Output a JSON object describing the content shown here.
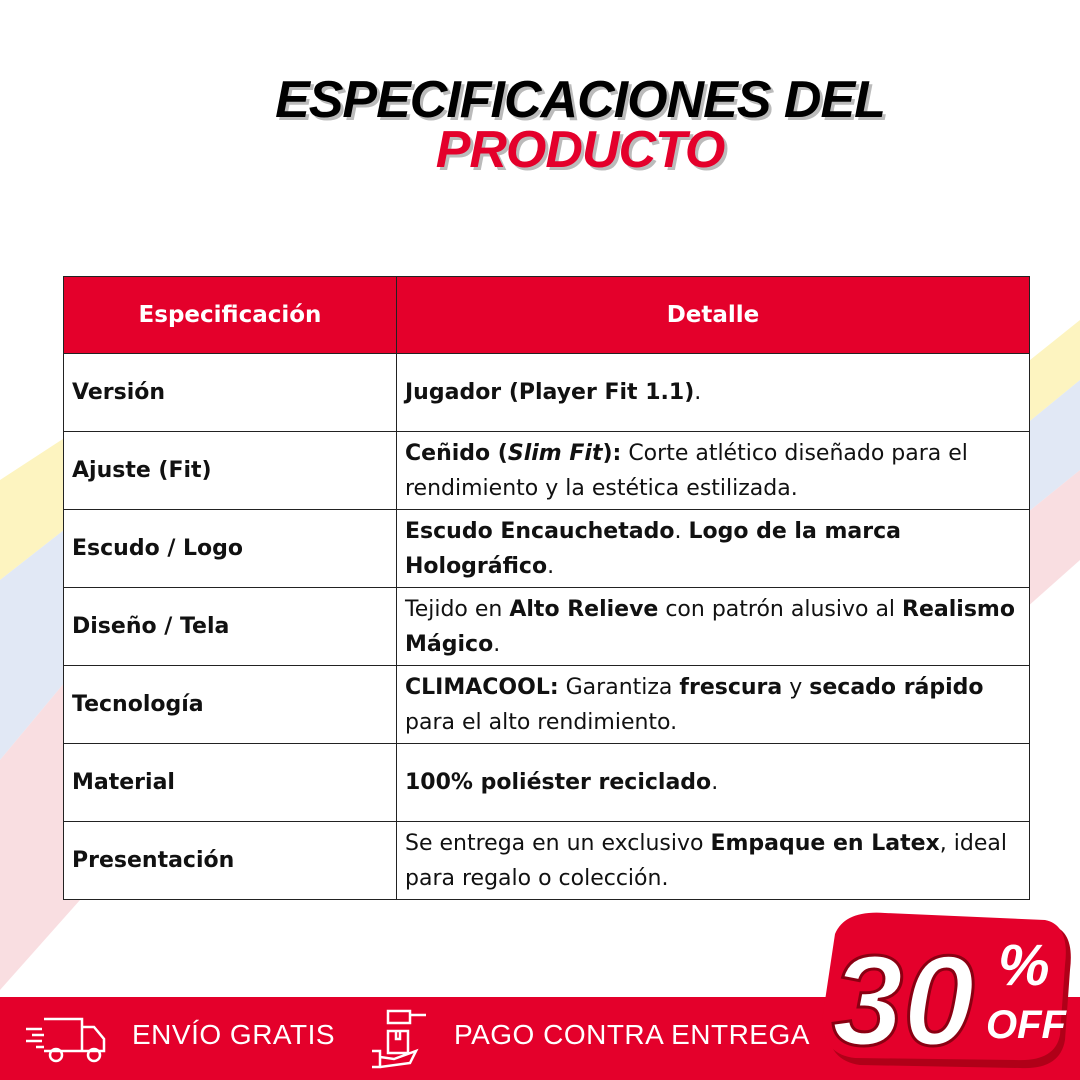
{
  "title": {
    "line1": "ESPECIFICACIONES DEL",
    "line2": "PRODUCTO"
  },
  "table": {
    "headers": [
      "Especificación",
      "Detalle"
    ],
    "rows": [
      {
        "key": "Versión",
        "detail": [
          {
            "t": "Jugador (Player Fit 1.1)",
            "b": true
          },
          {
            "t": "."
          }
        ]
      },
      {
        "key": "Ajuste (Fit)",
        "detail": [
          {
            "t": "Ceñido (",
            "b": true
          },
          {
            "t": "Slim Fit",
            "b": true,
            "i": true
          },
          {
            "t": "):",
            "b": true
          },
          {
            "t": " Corte atlético diseñado para el rendimiento y la estética estilizada."
          }
        ]
      },
      {
        "key": "Escudo / Logo",
        "detail": [
          {
            "t": "Escudo Encauchetado",
            "b": true
          },
          {
            "t": ". "
          },
          {
            "t": "Logo de la marca Holográfico",
            "b": true
          },
          {
            "t": "."
          }
        ]
      },
      {
        "key": "Diseño / Tela",
        "detail": [
          {
            "t": "Tejido en "
          },
          {
            "t": "Alto Relieve",
            "b": true
          },
          {
            "t": " con patrón alusivo al "
          },
          {
            "t": "Realismo Mágico",
            "b": true
          },
          {
            "t": "."
          }
        ]
      },
      {
        "key": "Tecnología",
        "detail": [
          {
            "t": "CLIMACOOL:",
            "b": true
          },
          {
            "t": " Garantiza "
          },
          {
            "t": "frescura",
            "b": true
          },
          {
            "t": " y "
          },
          {
            "t": "secado rápido",
            "b": true
          },
          {
            "t": " para el alto rendimiento."
          }
        ]
      },
      {
        "key": "Material",
        "detail": [
          {
            "t": "100% poliéster reciclado",
            "b": true
          },
          {
            "t": "."
          }
        ]
      },
      {
        "key": "Presentación",
        "detail": [
          {
            "t": "Se entrega en un exclusivo "
          },
          {
            "t": "Empaque en Latex",
            "b": true
          },
          {
            "t": ", ideal para regalo o colección."
          }
        ]
      }
    ]
  },
  "footer": {
    "shipping": "ENVÍO GRATIS",
    "payment": "PAGO CONTRA ENTREGA",
    "shipping_icon": "truck-icon",
    "payment_icon": "hand-package-icon"
  },
  "badge": {
    "number": "30",
    "percent": "%",
    "off": "OFF"
  },
  "colors": {
    "accent": "#e4002b",
    "yellow": "#fbe98a",
    "blue": "#c9d6ec"
  }
}
